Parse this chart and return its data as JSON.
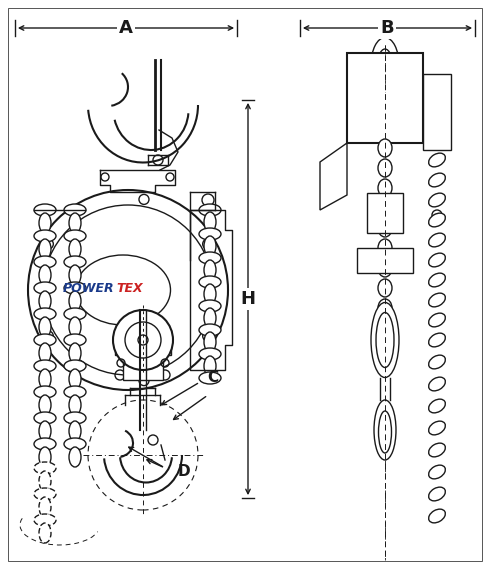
{
  "bg_color": "#ffffff",
  "line_color": "#1a1a1a",
  "powertex_blue": "#1a3a8a",
  "powertex_red": "#cc2222",
  "fig_width": 4.9,
  "fig_height": 5.69,
  "dpi": 100,
  "label_A": "A",
  "label_B": "B",
  "label_C": "C",
  "label_D": "D",
  "label_H": "H",
  "label_POWER": "POWER",
  "label_TEX": "TEX"
}
